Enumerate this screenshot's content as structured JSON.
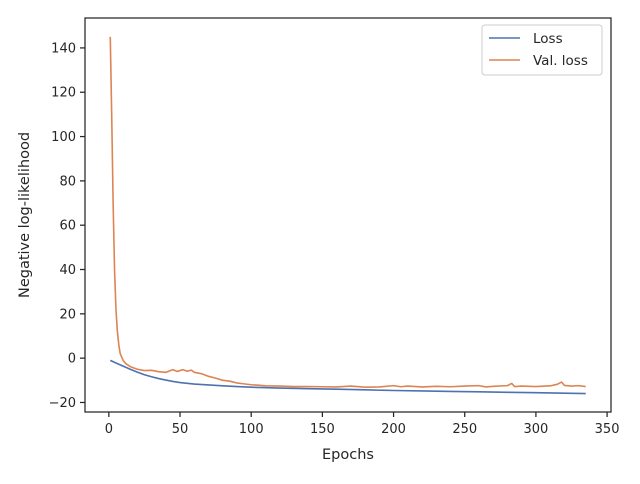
{
  "chart_data": {
    "type": "line",
    "title": "",
    "xlabel": "Epochs",
    "ylabel": "Negative log-likelihood",
    "xlim": [
      -16.75,
      352.75
    ],
    "ylim": [
      -24.3,
      153.5
    ],
    "xticks": [
      0,
      50,
      100,
      150,
      200,
      250,
      300,
      350
    ],
    "yticks": [
      -20,
      0,
      20,
      40,
      60,
      80,
      100,
      120,
      140
    ],
    "grid": false,
    "legend": {
      "placement": "top-right",
      "entries": [
        "Loss",
        "Val. loss"
      ]
    },
    "series": [
      {
        "name": "Loss",
        "color": "#4c72b0",
        "points": [
          [
            1,
            -1
          ],
          [
            5,
            -2.2
          ],
          [
            10,
            -3.6
          ],
          [
            15,
            -5
          ],
          [
            20,
            -6.3
          ],
          [
            25,
            -7.5
          ],
          [
            30,
            -8.4
          ],
          [
            35,
            -9.2
          ],
          [
            40,
            -9.9
          ],
          [
            45,
            -10.5
          ],
          [
            50,
            -11
          ],
          [
            60,
            -11.7
          ],
          [
            70,
            -12.1
          ],
          [
            80,
            -12.5
          ],
          [
            90,
            -12.8
          ],
          [
            100,
            -13.1
          ],
          [
            120,
            -13.5
          ],
          [
            140,
            -13.8
          ],
          [
            160,
            -14
          ],
          [
            180,
            -14.3
          ],
          [
            200,
            -14.6
          ],
          [
            220,
            -14.8
          ],
          [
            240,
            -15
          ],
          [
            260,
            -15.2
          ],
          [
            280,
            -15.4
          ],
          [
            300,
            -15.6
          ],
          [
            310,
            -15.7
          ],
          [
            320,
            -15.8
          ],
          [
            330,
            -15.9
          ],
          [
            335,
            -16
          ]
        ]
      },
      {
        "name": "Val. loss",
        "color": "#dd8452",
        "points": [
          [
            1,
            145
          ],
          [
            2,
            110
          ],
          [
            3,
            70
          ],
          [
            4,
            40
          ],
          [
            5,
            22
          ],
          [
            6,
            12
          ],
          [
            7,
            6
          ],
          [
            8,
            2
          ],
          [
            10,
            -1
          ],
          [
            12,
            -2.5
          ],
          [
            15,
            -3.8
          ],
          [
            20,
            -5
          ],
          [
            25,
            -5.6
          ],
          [
            30,
            -5.5
          ],
          [
            35,
            -6.1
          ],
          [
            40,
            -6.4
          ],
          [
            45,
            -5.2
          ],
          [
            48,
            -6
          ],
          [
            52,
            -5.2
          ],
          [
            55,
            -5.9
          ],
          [
            58,
            -5.4
          ],
          [
            60,
            -6.4
          ],
          [
            65,
            -7
          ],
          [
            70,
            -8.2
          ],
          [
            75,
            -9
          ],
          [
            80,
            -10
          ],
          [
            85,
            -10.4
          ],
          [
            90,
            -11.2
          ],
          [
            95,
            -11.6
          ],
          [
            100,
            -12
          ],
          [
            105,
            -12.2
          ],
          [
            110,
            -12.5
          ],
          [
            120,
            -12.6
          ],
          [
            130,
            -12.8
          ],
          [
            140,
            -12.8
          ],
          [
            150,
            -12.9
          ],
          [
            160,
            -13
          ],
          [
            170,
            -12.6
          ],
          [
            180,
            -13.1
          ],
          [
            190,
            -13
          ],
          [
            200,
            -12.4
          ],
          [
            205,
            -12.9
          ],
          [
            210,
            -12.6
          ],
          [
            220,
            -13
          ],
          [
            230,
            -12.7
          ],
          [
            240,
            -12.9
          ],
          [
            250,
            -12.6
          ],
          [
            260,
            -12.4
          ],
          [
            265,
            -13
          ],
          [
            270,
            -12.7
          ],
          [
            280,
            -12.4
          ],
          [
            283,
            -11.4
          ],
          [
            285,
            -12.8
          ],
          [
            290,
            -12.6
          ],
          [
            300,
            -12.8
          ],
          [
            310,
            -12.5
          ],
          [
            315,
            -11.8
          ],
          [
            318,
            -10.8
          ],
          [
            320,
            -12.3
          ],
          [
            325,
            -12.6
          ],
          [
            330,
            -12.4
          ],
          [
            335,
            -12.8
          ]
        ]
      }
    ]
  }
}
